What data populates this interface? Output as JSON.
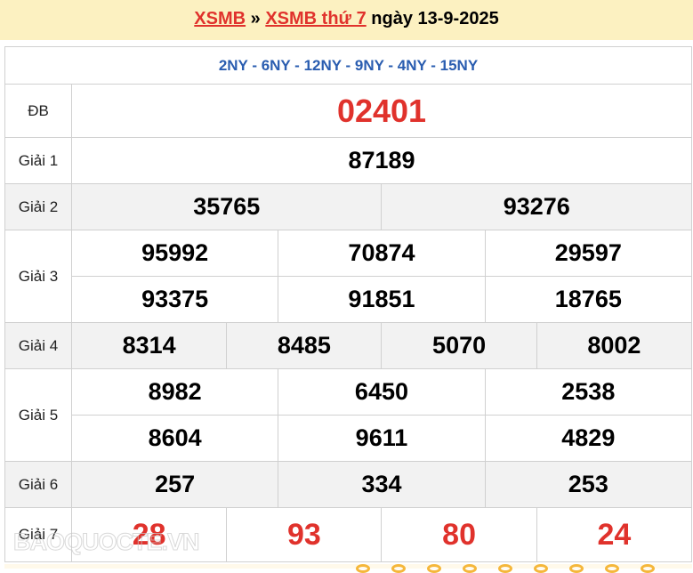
{
  "header": {
    "link1": "XSMB",
    "sep": "»",
    "link2": "XSMB thứ 7",
    "date_text": "ngày 13-9-2025"
  },
  "codes": "2NY - 6NY - 12NY - 9NY - 4NY - 15NY",
  "prizes": [
    {
      "label": "ĐB",
      "rows": [
        [
          "02401"
        ]
      ],
      "style": "db"
    },
    {
      "label": "Giải 1",
      "rows": [
        [
          "87189"
        ]
      ]
    },
    {
      "label": "Giải 2",
      "rows": [
        [
          "35765",
          "93276"
        ]
      ],
      "gray": true
    },
    {
      "label": "Giải 3",
      "rows": [
        [
          "95992",
          "70874",
          "29597"
        ],
        [
          "93375",
          "91851",
          "18765"
        ]
      ]
    },
    {
      "label": "Giải 4",
      "rows": [
        [
          "8314",
          "8485",
          "5070",
          "8002"
        ]
      ],
      "gray": true
    },
    {
      "label": "Giải 5",
      "rows": [
        [
          "8982",
          "6450",
          "2538"
        ],
        [
          "8604",
          "9611",
          "4829"
        ]
      ]
    },
    {
      "label": "Giải 6",
      "rows": [
        [
          "257",
          "334",
          "253"
        ]
      ],
      "gray": true
    },
    {
      "label": "Giải 7",
      "rows": [
        [
          "28",
          "93",
          "80",
          "24"
        ]
      ],
      "style": "red"
    }
  ],
  "watermark": "BAOQUOCTE.VN",
  "colors": {
    "accent_red": "#e0322c",
    "code_blue": "#2a5db0",
    "header_bg": "#fcf1c1"
  }
}
